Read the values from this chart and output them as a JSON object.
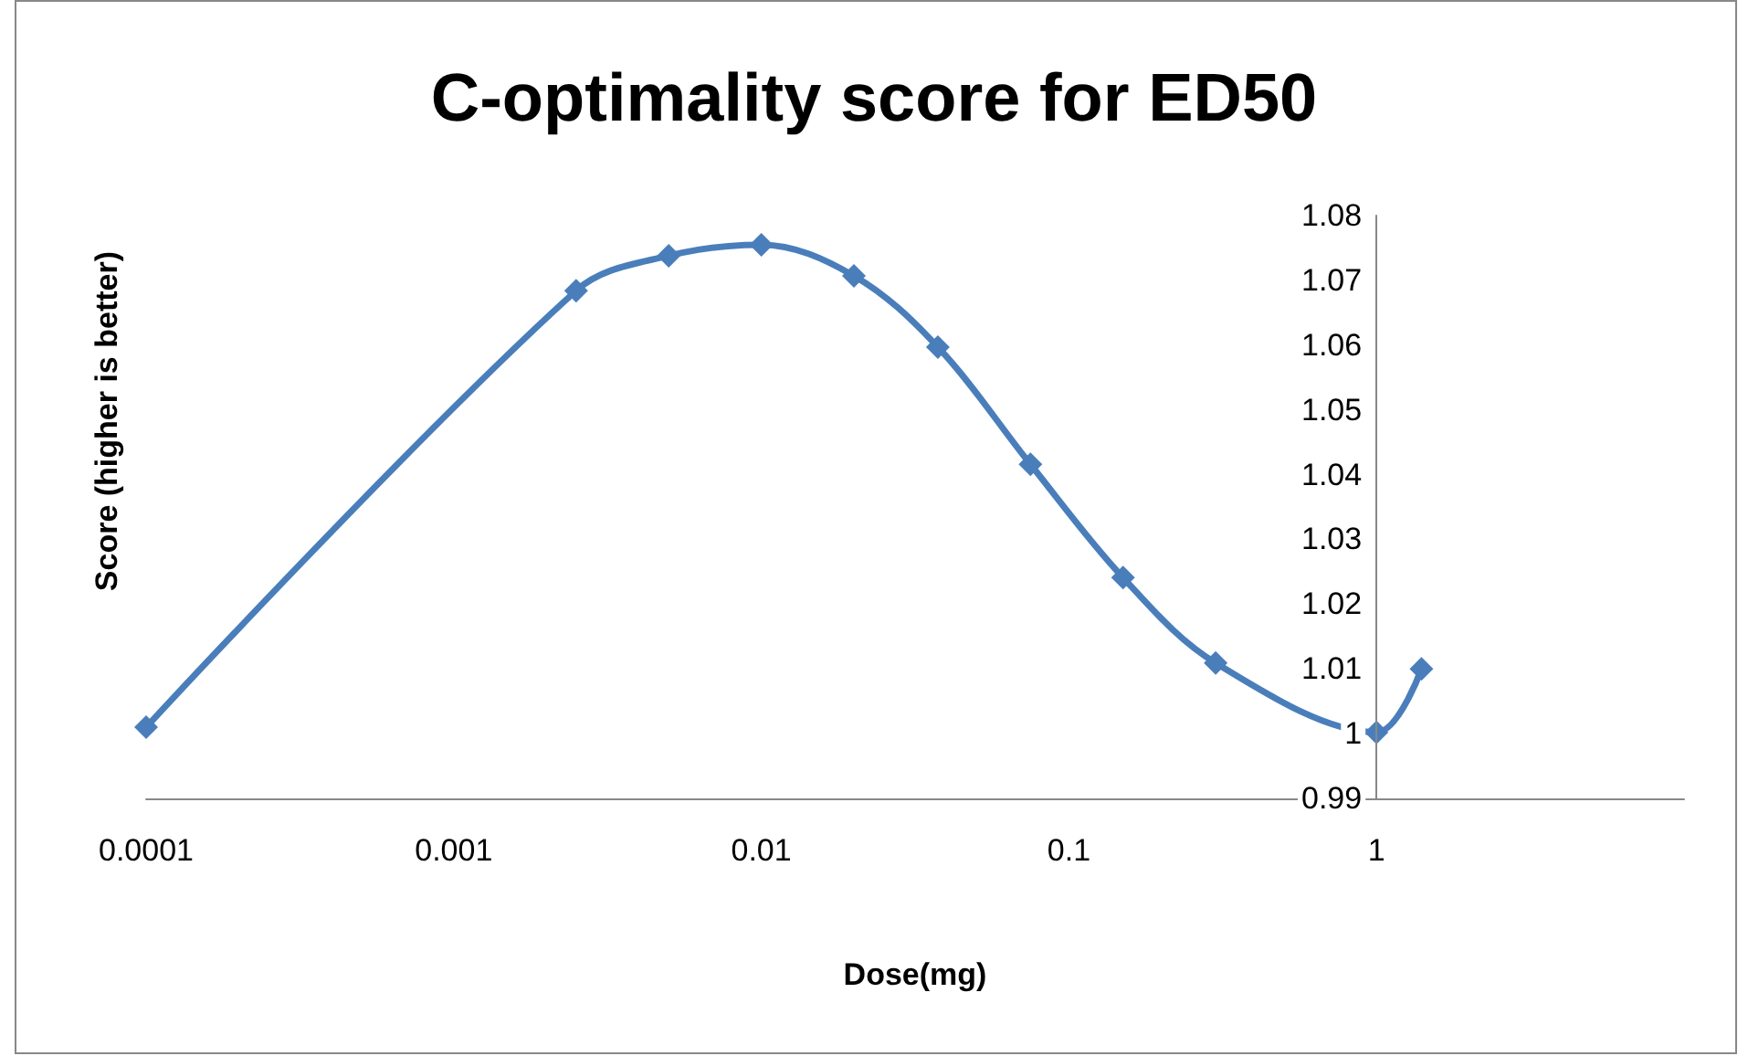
{
  "chart_data": {
    "type": "line",
    "title": "C-optimality score for ED50",
    "xlabel": "Dose(mg)",
    "ylabel": "Score (higher is better)",
    "x": [
      0.0001,
      0.0025,
      0.005,
      0.01,
      0.02,
      0.0375,
      0.075,
      0.15,
      0.3,
      1,
      1.4
    ],
    "series": [
      {
        "color": "#4a7ebb",
        "values": [
          1.001,
          1.0684,
          1.0738,
          1.0755,
          1.0707,
          1.0597,
          1.0416,
          1.0241,
          1.0109,
          1.0002,
          1.01
        ]
      }
    ],
    "log": "x",
    "xlim": [
      0.0001,
      10
    ],
    "xticks": [
      0.0001,
      0.001,
      0.01,
      0.1,
      1
    ],
    "ylim": [
      0.99,
      1.08
    ],
    "yticks": [
      0.99,
      1,
      1.01,
      1.02,
      1.03,
      1.04,
      1.05,
      1.06,
      1.07,
      1.08
    ],
    "grid": false,
    "marker": "diamond",
    "line_style": "solid"
  }
}
